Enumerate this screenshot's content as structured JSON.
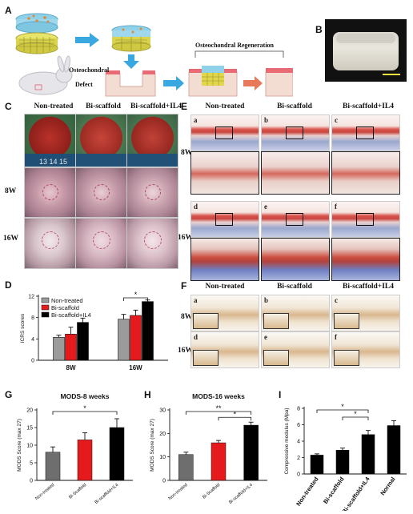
{
  "panels": {
    "A": {
      "label": "A",
      "defect_label_1": "Osteochondral",
      "defect_label_2": "Defect",
      "regen_label": "Osteochondral Regeneration"
    },
    "B": {
      "label": "B"
    },
    "C": {
      "label": "C",
      "columns": [
        "Non-treated",
        "Bi-scaffold",
        "Bi-scaffold+IL4"
      ],
      "rows": [
        "8W",
        "16W"
      ],
      "ruler_text": "13 14 15"
    },
    "D": {
      "label": "D"
    },
    "E": {
      "label": "E",
      "columns": [
        "Non-treated",
        "Bi-scaffold",
        "Bi-scaffold+IL4"
      ],
      "rows": [
        "8W",
        "16W"
      ],
      "sub_labels": [
        "a",
        "b",
        "c",
        "d",
        "e",
        "f"
      ]
    },
    "F": {
      "label": "F",
      "columns": [
        "Non-treated",
        "Bi-scaffold",
        "Bi-scaffold+IL4"
      ],
      "rows": [
        "8W",
        "16W"
      ],
      "sub_labels": [
        "a",
        "b",
        "c",
        "d",
        "e",
        "f"
      ]
    },
    "G": {
      "label": "G"
    },
    "H": {
      "label": "H"
    },
    "I": {
      "label": "I"
    }
  },
  "chart_data": [
    {
      "id": "D",
      "type": "bar",
      "categories": [
        "8W",
        "16W"
      ],
      "ylabel": "ICRS scores",
      "ylim": [
        0,
        12
      ],
      "yticks": [
        0,
        4,
        8,
        12
      ],
      "legend_position": "top-left",
      "series": [
        {
          "name": "Non-treated",
          "color": "#9b9b9b",
          "values": [
            4.3,
            7.7
          ],
          "errors": [
            0.4,
            0.9
          ]
        },
        {
          "name": "Bi-scaffold",
          "color": "#e41a1c",
          "values": [
            4.9,
            8.4
          ],
          "errors": [
            1.3,
            1.0
          ]
        },
        {
          "name": "Bi-scaffold+IL4",
          "color": "#000000",
          "values": [
            7.1,
            11.0
          ],
          "errors": [
            0.8,
            0.3
          ]
        }
      ],
      "significance": [
        {
          "from": "16W:0",
          "to": "16W:2",
          "text": "*"
        }
      ]
    },
    {
      "id": "G",
      "type": "bar",
      "title": "MODS-8 weeks",
      "categories": [
        "Non-treated",
        "Bi-Scaffold",
        "Bi-scaffold+IL4"
      ],
      "values": [
        8,
        11.5,
        15
      ],
      "errors": [
        1.5,
        2.0,
        2.5
      ],
      "colors": [
        "#6e6e6e",
        "#e41a1c",
        "#000000"
      ],
      "ylabel": "MODS Score (max 27)",
      "ylim": [
        0,
        20
      ],
      "yticks": [
        0,
        5,
        10,
        15,
        20
      ],
      "significance": [
        {
          "from": 0,
          "to": 2,
          "text": "*"
        }
      ]
    },
    {
      "id": "H",
      "type": "bar",
      "title": "MODS-16 weeks",
      "categories": [
        "Non-treated",
        "Bi-Scaffold",
        "Bi-scaffold+IL4"
      ],
      "values": [
        11,
        16,
        23.5
      ],
      "errors": [
        1.0,
        1.0,
        1.3
      ],
      "colors": [
        "#6e6e6e",
        "#e41a1c",
        "#000000"
      ],
      "ylabel": "MODS Score (max 27)",
      "ylim": [
        0,
        30
      ],
      "yticks": [
        0,
        10,
        20,
        30
      ],
      "significance": [
        {
          "from": 0,
          "to": 2,
          "text": "**"
        },
        {
          "from": 1,
          "to": 2,
          "text": "*"
        }
      ]
    },
    {
      "id": "I",
      "type": "bar",
      "categories": [
        "Non-treated",
        "Bi-scaffold",
        "Bi-scaffold+IL4",
        "Normal"
      ],
      "values": [
        2.3,
        2.9,
        4.8,
        5.9
      ],
      "errors": [
        0.15,
        0.25,
        0.5,
        0.6
      ],
      "colors": [
        "#000000",
        "#000000",
        "#000000",
        "#000000"
      ],
      "ylabel": "Compressive modulus (Mpa)",
      "ylim": [
        0,
        8
      ],
      "yticks": [
        0,
        2,
        4,
        6,
        8
      ],
      "significance": [
        {
          "from": 0,
          "to": 2,
          "text": "*"
        },
        {
          "from": 1,
          "to": 2,
          "text": "*"
        }
      ]
    }
  ]
}
